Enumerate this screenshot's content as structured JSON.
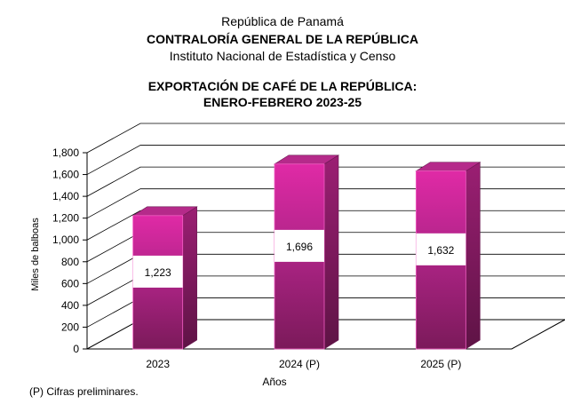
{
  "header": {
    "line1": "República de Panamá",
    "line2": "CONTRALORÍA GENERAL DE LA REPÚBLICA",
    "line3": "Instituto  Nacional de Estadística  y  Censo"
  },
  "footnote": "(P) Cifras  preliminares.",
  "colors": {
    "bar_front_top": "#e02aa6",
    "bar_front_bottom": "#7b1a5a",
    "bar_side": "#5e1345",
    "bar_top": "#b52a8a",
    "floor": "#ffffff",
    "grid": "#000000"
  },
  "chart_data": {
    "type": "bar",
    "title": "EXPORTACIÓN DE CAFÉ DE LA REPÚBLICA:\nENERO-FEBRERO 2023-25",
    "title_lines": [
      "EXPORTACIÓN DE CAFÉ DE LA REPÚBLICA:",
      "ENERO-FEBRERO 2023-25"
    ],
    "categories": [
      "2023",
      "2024 (P)",
      "2025 (P)"
    ],
    "values": [
      1223,
      1696,
      1632
    ],
    "data_labels": [
      "1,223",
      "1,696",
      "1,632"
    ],
    "xlabel": "Años",
    "ylabel": "Miles de balboas",
    "ylim": [
      0,
      1800
    ],
    "yticks": [
      0,
      200,
      400,
      600,
      800,
      1000,
      1200,
      1400,
      1600,
      1800
    ],
    "ytick_labels": [
      "0",
      "200",
      "400",
      "600",
      "800",
      "1,000",
      "1,200",
      "1,400",
      "1,600",
      "1,800"
    ],
    "grid": true,
    "legend": "none"
  }
}
